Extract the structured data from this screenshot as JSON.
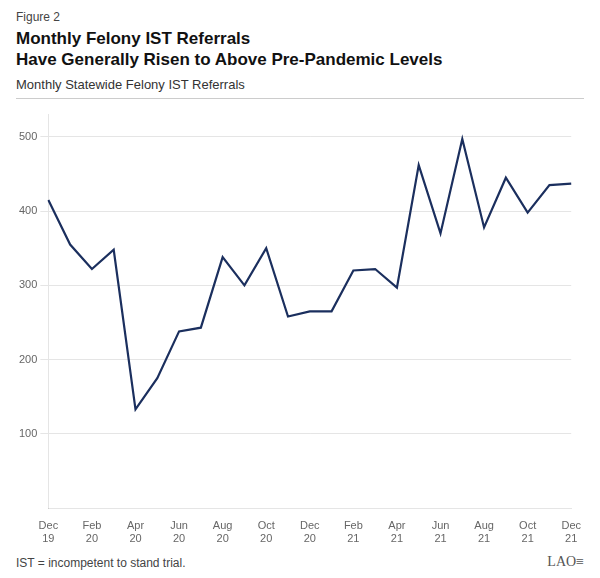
{
  "chart_data": {
    "type": "line",
    "figure_label": "Figure 2",
    "title": [
      "Monthly Felony IST Referrals",
      "Have Generally Risen to Above Pre-Pandemic Levels"
    ],
    "subtitle": "Monthly Statewide Felony IST Referrals",
    "footnote": "IST = incompetent to stand trial.",
    "logo": "LAO≡",
    "categories": [
      "Dec\n19",
      null,
      "Feb\n20",
      null,
      "Apr\n20",
      null,
      "Jun\n20",
      null,
      "Aug\n20",
      null,
      "Oct\n20",
      null,
      "Dec\n20",
      null,
      "Feb\n21",
      null,
      "Apr\n21",
      null,
      "Jun\n21",
      null,
      "Aug\n21",
      null,
      "Oct\n21",
      null,
      "Dec\n21"
    ],
    "values": [
      415,
      355,
      322,
      348,
      133,
      175,
      238,
      243,
      338,
      300,
      350,
      258,
      265,
      265,
      320,
      322,
      297,
      462,
      370,
      497,
      378,
      445,
      398,
      435,
      437
    ],
    "color": "#1b2f5e",
    "marker": "none",
    "ylim": [
      0,
      530
    ],
    "yticks": [
      100,
      200,
      300,
      400,
      500
    ],
    "grid": true
  }
}
